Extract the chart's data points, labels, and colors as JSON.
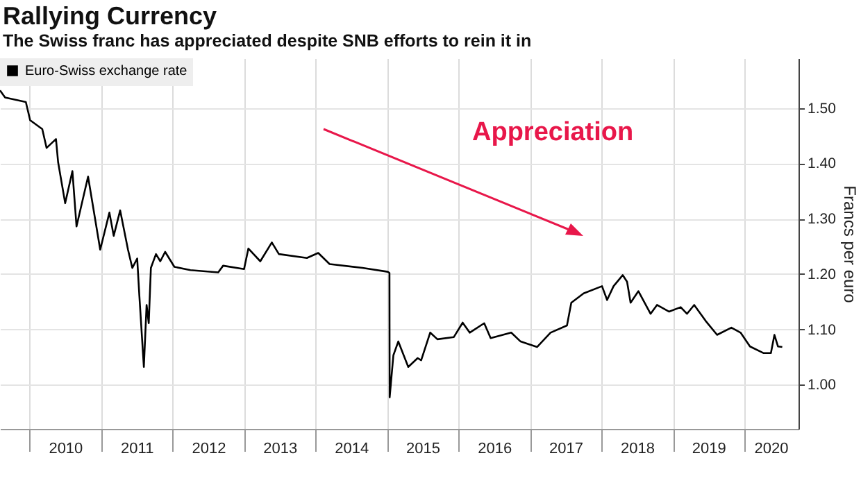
{
  "chart_data": {
    "type": "line",
    "title": "Rallying Currency",
    "subtitle": "The Swiss franc has appreciated despite SNB efforts to rein it in",
    "ylabel": "Francs per euro",
    "annotations": [
      "Appreciation"
    ],
    "x": [
      "2009-08-03",
      "2009-08-29",
      "2009-12-13",
      "2010-01-04",
      "2010-03-07",
      "2010-03-29",
      "2010-05-16",
      "2010-05-27",
      "2010-07-02",
      "2010-08-08",
      "2010-08-29",
      "2010-10-27",
      "2010-12-28",
      "2011-02-13",
      "2011-03-07",
      "2011-04-09",
      "2011-05-19",
      "2011-06-10",
      "2011-07-05",
      "2011-07-16",
      "2011-08-08",
      "2011-08-22",
      "2011-09-02",
      "2011-09-13",
      "2011-10-09",
      "2011-10-31",
      "2011-11-25",
      "2012-01-11",
      "2012-04-02",
      "2012-08-22",
      "2012-09-16",
      "2013-01-01",
      "2013-01-23",
      "2013-03-25",
      "2013-05-23",
      "2013-06-28",
      "2013-11-18",
      "2014-01-15",
      "2014-03-14",
      "2014-08-29",
      "2015-01-05",
      "2015-01-14",
      "2015-01-15",
      "2015-02-03",
      "2015-02-28",
      "2015-04-20",
      "2015-06-07",
      "2015-06-25",
      "2015-08-10",
      "2015-09-16",
      "2015-12-09",
      "2016-01-23",
      "2016-02-28",
      "2016-05-12",
      "2016-06-14",
      "2016-09-27",
      "2016-11-14",
      "2017-02-06",
      "2017-04-16",
      "2017-07-09",
      "2017-07-31",
      "2017-10-02",
      "2018-01-04",
      "2018-01-30",
      "2018-03-04",
      "2018-04-20",
      "2018-05-12",
      "2018-05-30",
      "2018-07-09",
      "2018-09-09",
      "2018-10-12",
      "2018-12-13",
      "2019-02-10",
      "2019-03-14",
      "2019-04-20",
      "2019-06-18",
      "2019-08-15",
      "2019-10-27",
      "2019-12-13",
      "2020-01-30",
      "2020-04-09",
      "2020-05-16",
      "2020-06-03",
      "2020-06-21",
      "2020-07-13"
    ],
    "series": [
      {
        "name": "Euro-Swiss exchange rate",
        "color": "#000000",
        "values": [
          1.532,
          1.519,
          1.511,
          1.478,
          1.462,
          1.428,
          1.444,
          1.402,
          1.328,
          1.386,
          1.286,
          1.376,
          1.244,
          1.311,
          1.269,
          1.315,
          1.244,
          1.211,
          1.228,
          1.161,
          1.032,
          1.144,
          1.111,
          1.211,
          1.236,
          1.223,
          1.24,
          1.213,
          1.207,
          1.203,
          1.215,
          1.209,
          1.246,
          1.223,
          1.257,
          1.236,
          1.229,
          1.238,
          1.218,
          1.211,
          1.204,
          1.202,
          0.977,
          1.053,
          1.078,
          1.032,
          1.048,
          1.044,
          1.094,
          1.082,
          1.086,
          1.112,
          1.094,
          1.111,
          1.084,
          1.094,
          1.078,
          1.068,
          1.094,
          1.107,
          1.148,
          1.165,
          1.178,
          1.153,
          1.178,
          1.198,
          1.186,
          1.148,
          1.169,
          1.128,
          1.144,
          1.132,
          1.14,
          1.128,
          1.144,
          1.115,
          1.09,
          1.103,
          1.094,
          1.069,
          1.057,
          1.057,
          1.09,
          1.069,
          1.068
        ]
      }
    ],
    "xlim": [
      "2009-08-03",
      "2020-10-04"
    ],
    "xticks": [
      {
        "value": "2010-01-01",
        "label": null
      },
      {
        "value": "2011-01-01",
        "label": null
      },
      {
        "value": "2012-01-01",
        "label": null
      },
      {
        "value": "2013-01-01",
        "label": null
      },
      {
        "value": "2014-01-01",
        "label": null
      },
      {
        "value": "2015-01-01",
        "label": null
      },
      {
        "value": "2016-01-01",
        "label": null
      },
      {
        "value": "2017-01-01",
        "label": null
      },
      {
        "value": "2018-01-01",
        "label": null
      },
      {
        "value": "2019-01-01",
        "label": null
      },
      {
        "value": "2020-01-01",
        "label": null
      },
      {
        "value": "2010-07-02",
        "label": "2010"
      },
      {
        "value": "2011-07-02",
        "label": "2011"
      },
      {
        "value": "2012-07-02",
        "label": "2012"
      },
      {
        "value": "2013-07-02",
        "label": "2013"
      },
      {
        "value": "2014-07-02",
        "label": "2014"
      },
      {
        "value": "2015-07-02",
        "label": "2015"
      },
      {
        "value": "2016-07-02",
        "label": "2016"
      },
      {
        "value": "2017-07-02",
        "label": "2017"
      },
      {
        "value": "2018-07-02",
        "label": "2018"
      },
      {
        "value": "2019-07-02",
        "label": "2019"
      },
      {
        "value": "2020-05-15",
        "label": "2020"
      }
    ],
    "ylim": [
      0.92,
      1.59
    ],
    "yticks": [
      {
        "value": 1,
        "label": "1.00"
      },
      {
        "value": 1.1,
        "label": "1.10"
      },
      {
        "value": 1.2,
        "label": "1.20"
      },
      {
        "value": 1.3,
        "label": "1.30"
      },
      {
        "value": 1.4,
        "label": "1.40"
      },
      {
        "value": 1.5,
        "label": "1.50"
      }
    ],
    "grid": true,
    "legend": "top left",
    "line_style": "solid"
  }
}
